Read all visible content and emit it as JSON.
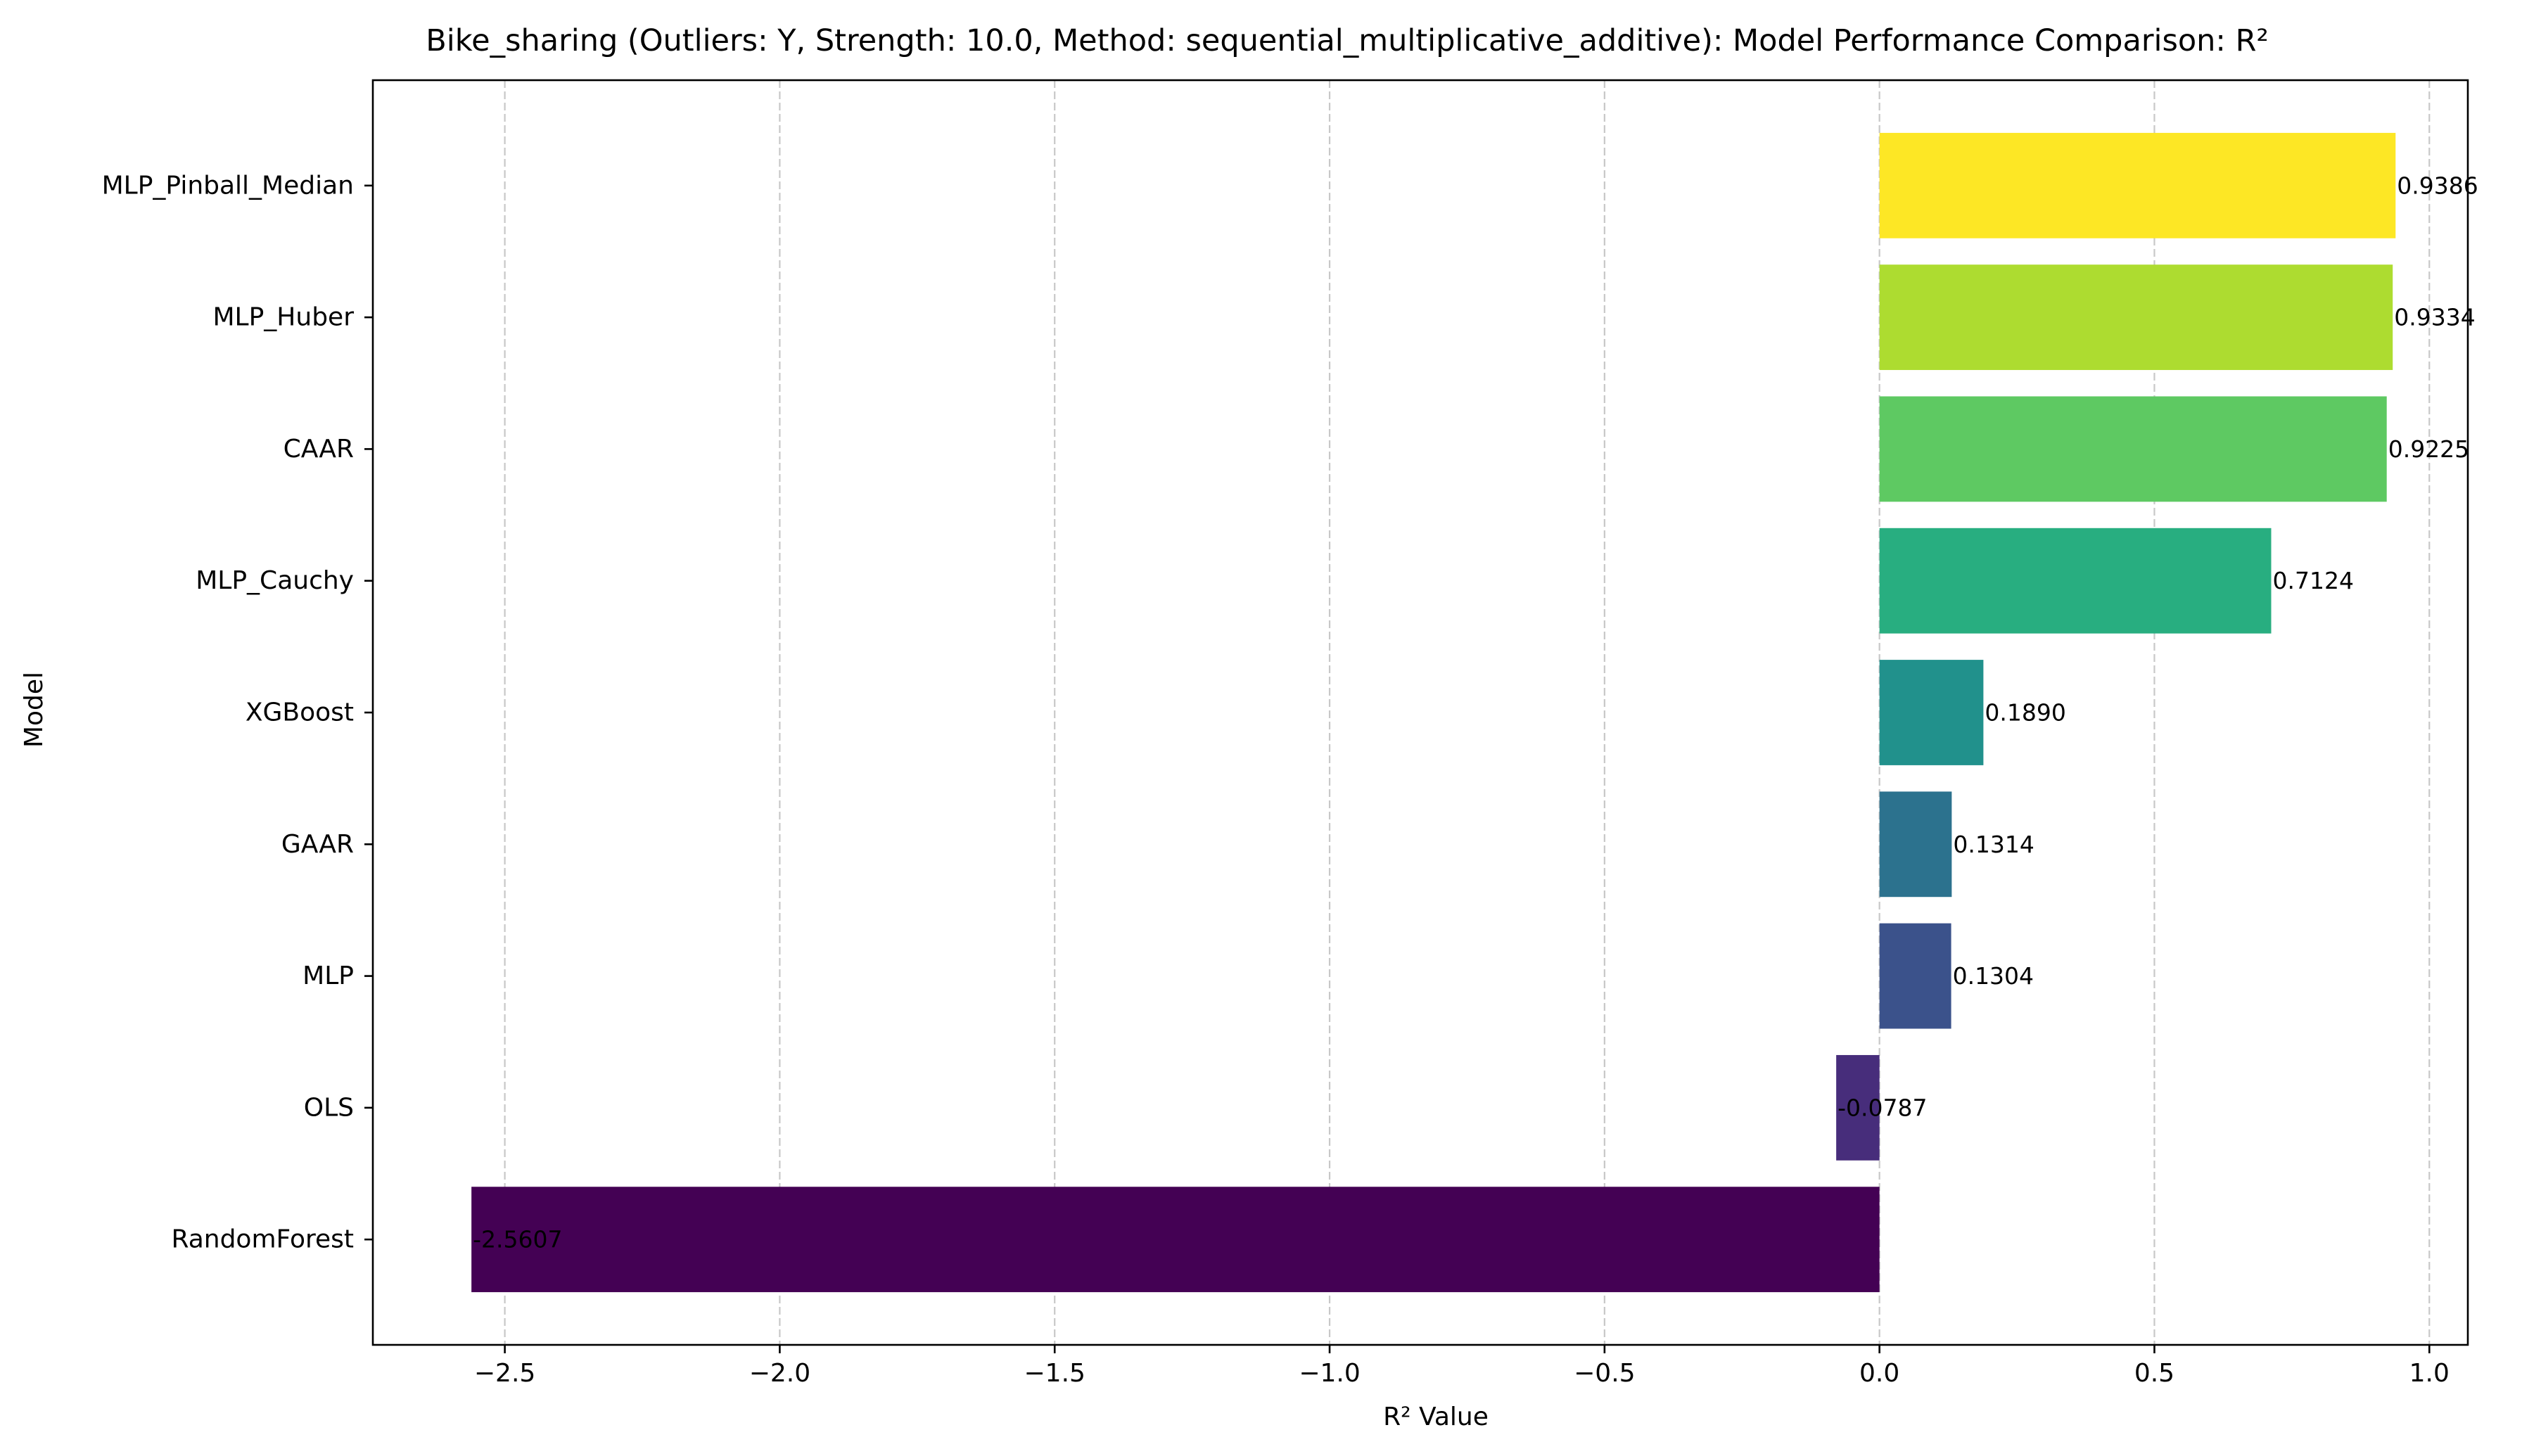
{
  "chart_data": {
    "type": "bar",
    "orientation": "horizontal",
    "title": "Bike_sharing (Outliers: Y, Strength: 10.0, Method: sequential_multiplicative_additive): Model Performance Comparison: R²",
    "xlabel": "R² Value",
    "ylabel": "Model",
    "xlim": [
      -2.74,
      1.07
    ],
    "xticks": [
      -2.5,
      -2.0,
      -1.5,
      -1.0,
      -0.5,
      0.0,
      0.5,
      1.0
    ],
    "xtick_labels": [
      "−2.5",
      "−2.0",
      "−1.5",
      "−1.0",
      "−0.5",
      "0.0",
      "0.5",
      "1.0"
    ],
    "grid": "x-axis dashed",
    "categories": [
      "MLP_Pinball_Median",
      "MLP_Huber",
      "CAAR",
      "MLP_Cauchy",
      "XGBoost",
      "GAAR",
      "MLP",
      "OLS",
      "RandomForest"
    ],
    "values": [
      0.9386,
      0.9334,
      0.9225,
      0.7124,
      0.189,
      0.1314,
      0.1304,
      -0.0787,
      -2.5607
    ],
    "value_labels": [
      "0.9386",
      "0.9334",
      "0.9225",
      "0.7124",
      "0.1890",
      "0.1314",
      "0.1304",
      "-0.0787",
      "-2.5607"
    ],
    "colors": [
      "#fde725",
      "#addc30",
      "#5ec962",
      "#28ae80",
      "#21918c",
      "#2c728e",
      "#3b528b",
      "#472d7b",
      "#440154"
    ]
  }
}
